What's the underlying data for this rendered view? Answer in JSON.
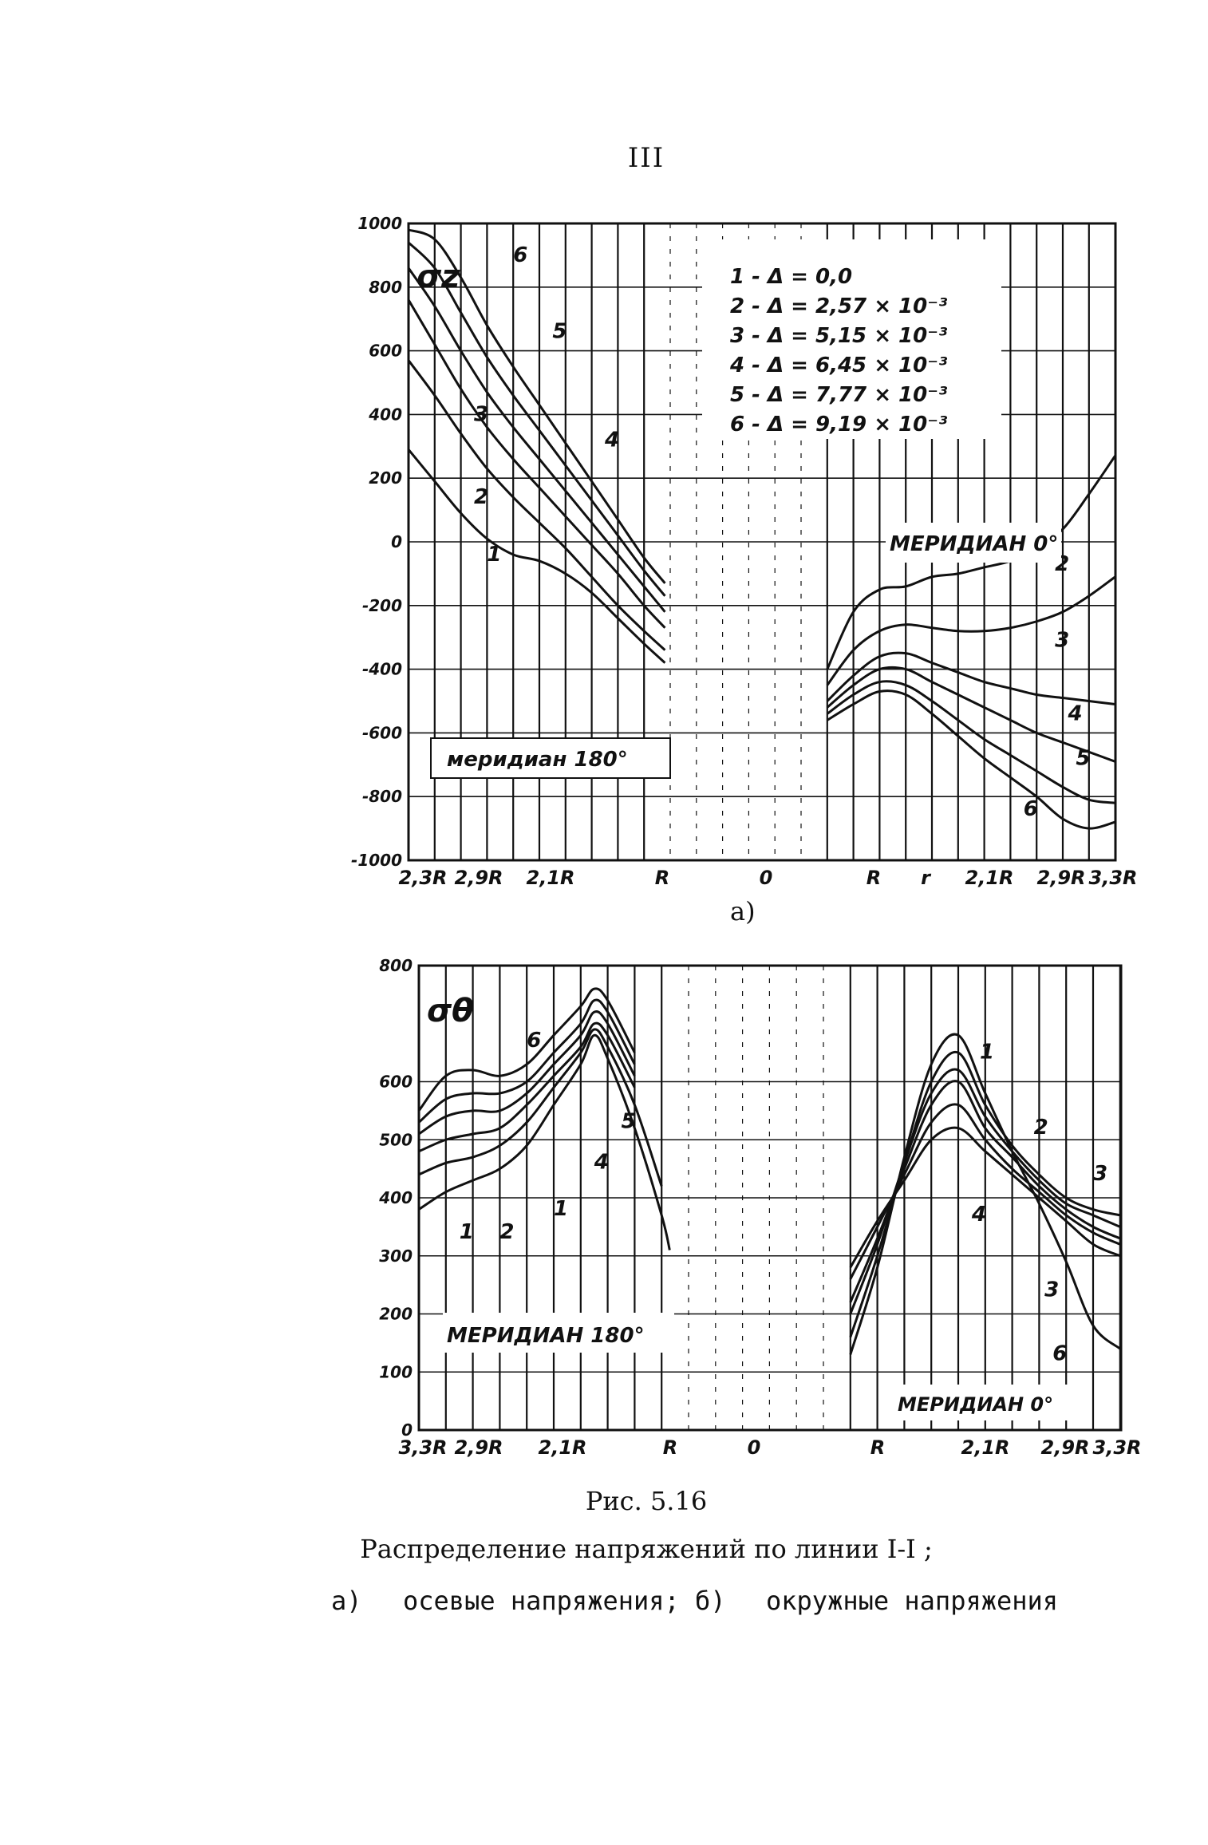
{
  "page_number": "III",
  "figure": {
    "number_caption": "Рис. 5.16",
    "title": "Распределение напряжений по линии I-I ;",
    "part_a_prefix": "а)",
    "part_a_text": "осевые напряжения; б)",
    "part_b_text": "окружные напряжения"
  },
  "colors": {
    "ink": "#111111",
    "paper": "#ffffff"
  },
  "chart_data": [
    {
      "id": "a",
      "type": "line",
      "panel_label": "а)",
      "ylabel": "σz",
      "ylim": [
        -1000,
        1000
      ],
      "grid": true,
      "y_ticks": [
        {
          "value": 1000,
          "label": "1000"
        },
        {
          "value": 800,
          "label": "800"
        },
        {
          "value": 600,
          "label": "600"
        },
        {
          "value": 400,
          "label": "400"
        },
        {
          "value": 200,
          "label": "200"
        },
        {
          "value": 0,
          "label": "0"
        },
        {
          "value": -200,
          "label": "-200"
        },
        {
          "value": -400,
          "label": "-400"
        },
        {
          "value": -600,
          "label": "-600"
        },
        {
          "value": -800,
          "label": "-800"
        },
        {
          "value": -1000,
          "label": "-1000"
        }
      ],
      "x_ticks": [
        "2,3R",
        "2,9R",
        "2,1R",
        "R",
        "0",
        "R",
        "r",
        "2,1R",
        "2,9R",
        "3,3R"
      ],
      "legend": [
        {
          "id": "1",
          "text": "1 - Δ  =  0,0"
        },
        {
          "id": "2",
          "text": "2 - Δ  =  2,57 × 10⁻³"
        },
        {
          "id": "3",
          "text": "3 - Δ  =  5,15 × 10⁻³"
        },
        {
          "id": "4",
          "text": "4 - Δ  =  6,45 × 10⁻³"
        },
        {
          "id": "5",
          "text": "5 - Δ  =  7,77 × 10⁻³"
        },
        {
          "id": "6",
          "text": "6 - Δ  =  9,19 × 10⁻³"
        }
      ],
      "meridian_left": "меридиан 180°",
      "meridian_right": "МЕРИДИАН 0°",
      "x_units": "position index, 0 = leftmost gridline (2,3R); 1 unit ≈ one grid spacing; gap between R and R is empty",
      "series": [
        {
          "name": "1",
          "side": "left",
          "x": [
            0,
            1,
            2,
            3,
            4,
            5,
            6,
            7,
            8,
            9,
            9.8
          ],
          "y": [
            290,
            190,
            90,
            10,
            -40,
            -60,
            -100,
            -160,
            -240,
            -320,
            -380
          ]
        },
        {
          "name": "2",
          "side": "left",
          "x": [
            0,
            1,
            2,
            3,
            4,
            5,
            6,
            7,
            8,
            9,
            9.8
          ],
          "y": [
            570,
            460,
            340,
            230,
            140,
            60,
            -20,
            -110,
            -200,
            -280,
            -340
          ]
        },
        {
          "name": "3",
          "side": "left",
          "x": [
            0,
            1,
            2,
            3,
            4,
            5,
            6,
            7,
            8,
            9,
            9.8
          ],
          "y": [
            760,
            620,
            480,
            360,
            260,
            170,
            80,
            -10,
            -100,
            -200,
            -270
          ]
        },
        {
          "name": "4",
          "side": "left",
          "x": [
            0,
            1,
            2,
            3,
            4,
            5,
            6,
            7,
            8,
            9,
            9.8
          ],
          "y": [
            860,
            740,
            600,
            470,
            360,
            260,
            160,
            60,
            -40,
            -140,
            -220
          ]
        },
        {
          "name": "5",
          "side": "left",
          "x": [
            0,
            1,
            2,
            3,
            4,
            5,
            6,
            7,
            8,
            9,
            9.8
          ],
          "y": [
            940,
            860,
            720,
            580,
            460,
            350,
            240,
            130,
            20,
            -90,
            -170
          ]
        },
        {
          "name": "6",
          "side": "left",
          "x": [
            0,
            1,
            2,
            3,
            4,
            5,
            6,
            7,
            8,
            9,
            9.8
          ],
          "y": [
            980,
            950,
            830,
            680,
            550,
            430,
            310,
            190,
            70,
            -50,
            -130
          ]
        },
        {
          "name": "1",
          "side": "right",
          "x": [
            16,
            17,
            18,
            19,
            20,
            21,
            22,
            23,
            24,
            25,
            26,
            27
          ],
          "y": [
            -400,
            -220,
            -150,
            -140,
            -110,
            -100,
            -80,
            -60,
            -20,
            40,
            150,
            270
          ]
        },
        {
          "name": "2",
          "side": "right",
          "x": [
            16,
            17,
            18,
            19,
            20,
            21,
            22,
            23,
            24,
            25,
            26,
            27
          ],
          "y": [
            -450,
            -340,
            -280,
            -260,
            -270,
            -280,
            -280,
            -270,
            -250,
            -220,
            -170,
            -110
          ]
        },
        {
          "name": "3",
          "side": "right",
          "x": [
            16,
            17,
            18,
            19,
            20,
            21,
            22,
            23,
            24,
            25,
            26,
            27
          ],
          "y": [
            -500,
            -420,
            -360,
            -350,
            -380,
            -410,
            -440,
            -460,
            -480,
            -490,
            -500,
            -510
          ]
        },
        {
          "name": "4",
          "side": "right",
          "x": [
            16,
            17,
            18,
            19,
            20,
            21,
            22,
            23,
            24,
            25,
            26,
            27
          ],
          "y": [
            -520,
            -450,
            -400,
            -400,
            -440,
            -480,
            -520,
            -560,
            -600,
            -630,
            -660,
            -690
          ]
        },
        {
          "name": "5",
          "side": "right",
          "x": [
            16,
            17,
            18,
            19,
            20,
            21,
            22,
            23,
            24,
            25,
            26,
            27
          ],
          "y": [
            -540,
            -480,
            -440,
            -450,
            -500,
            -560,
            -620,
            -670,
            -720,
            -770,
            -810,
            -820
          ]
        },
        {
          "name": "6",
          "side": "right",
          "x": [
            16,
            17,
            18,
            19,
            20,
            21,
            22,
            23,
            24,
            25,
            26,
            27
          ],
          "y": [
            -560,
            -510,
            -470,
            -480,
            -540,
            -610,
            -680,
            -740,
            -800,
            -870,
            -900,
            -880
          ]
        }
      ],
      "curve_labels": [
        {
          "text": "6",
          "x": 4,
          "y": 880
        },
        {
          "text": "5",
          "x": 5.5,
          "y": 640
        },
        {
          "text": "4",
          "x": 7.5,
          "y": 300
        },
        {
          "text": "3",
          "x": 2.5,
          "y": 380
        },
        {
          "text": "2",
          "x": 2.5,
          "y": 120
        },
        {
          "text": "1",
          "x": 3,
          "y": -60
        },
        {
          "text": "2",
          "x": 24.7,
          "y": -90
        },
        {
          "text": "3",
          "x": 24.7,
          "y": -330
        },
        {
          "text": "4",
          "x": 25.2,
          "y": -560
        },
        {
          "text": "5",
          "x": 25.5,
          "y": -700
        },
        {
          "text": "6",
          "x": 23.5,
          "y": -860
        }
      ]
    },
    {
      "id": "b",
      "type": "line",
      "panel_label": "б)",
      "ylabel": "σθ",
      "ylim": [
        0,
        800
      ],
      "grid": true,
      "y_ticks": [
        {
          "value": 800,
          "label": "800"
        },
        {
          "value": 600,
          "label": "600"
        },
        {
          "value": 500,
          "label": "500"
        },
        {
          "value": 400,
          "label": "400"
        },
        {
          "value": 300,
          "label": "300"
        },
        {
          "value": 200,
          "label": "200"
        },
        {
          "value": 100,
          "label": "100"
        },
        {
          "value": 0,
          "label": "0"
        }
      ],
      "x_ticks": [
        "3,3R",
        "2,9R",
        "2,1R",
        "R",
        "0",
        "R",
        "2,1R",
        "2,9R",
        "3,3R"
      ],
      "meridian_left": "МЕРИДИАН 180°",
      "meridian_right": "МЕРИДИАН 0°",
      "x_units": "position index, 0 = leftmost gridline (3,3R); 1 unit ≈ one grid spacing; gap between R and R is empty",
      "series": [
        {
          "name": "1",
          "side": "left",
          "x": [
            0,
            1,
            2,
            3,
            4,
            5,
            6,
            6.5,
            7,
            8,
            9,
            9.3
          ],
          "y": [
            380,
            410,
            430,
            450,
            490,
            560,
            630,
            680,
            640,
            520,
            370,
            310
          ]
        },
        {
          "name": "2",
          "side": "left",
          "x": [
            0,
            1,
            2,
            3,
            4,
            5,
            6,
            6.5,
            7,
            8,
            9
          ],
          "y": [
            440,
            460,
            470,
            490,
            530,
            590,
            650,
            690,
            660,
            560,
            420
          ]
        },
        {
          "name": "3",
          "side": "left",
          "x": [
            0,
            1,
            2,
            3,
            4,
            5,
            6,
            6.5,
            7,
            8
          ],
          "y": [
            480,
            500,
            510,
            520,
            560,
            610,
            660,
            700,
            680,
            590
          ]
        },
        {
          "name": "4",
          "side": "left",
          "x": [
            0,
            1,
            2,
            3,
            4,
            5,
            6,
            6.5,
            7,
            8
          ],
          "y": [
            510,
            540,
            550,
            550,
            580,
            630,
            680,
            720,
            700,
            610
          ]
        },
        {
          "name": "5",
          "side": "left",
          "x": [
            0,
            1,
            2,
            3,
            4,
            5,
            6,
            6.5,
            7,
            8
          ],
          "y": [
            530,
            570,
            580,
            580,
            600,
            650,
            700,
            740,
            720,
            630
          ]
        },
        {
          "name": "6",
          "side": "left",
          "x": [
            0,
            1,
            2,
            3,
            4,
            5,
            6,
            6.5,
            7,
            8
          ],
          "y": [
            550,
            610,
            620,
            610,
            630,
            680,
            730,
            760,
            740,
            650
          ]
        },
        {
          "name": "1",
          "side": "right",
          "x": [
            16,
            17,
            18,
            19,
            20,
            21,
            22,
            23,
            24,
            25,
            26
          ],
          "y": [
            280,
            360,
            430,
            500,
            520,
            480,
            440,
            400,
            360,
            320,
            300
          ]
        },
        {
          "name": "2",
          "side": "right",
          "x": [
            16,
            17,
            18,
            19,
            20,
            21,
            22,
            23,
            24,
            25,
            26
          ],
          "y": [
            260,
            350,
            440,
            530,
            560,
            500,
            450,
            410,
            370,
            340,
            320
          ]
        },
        {
          "name": "3",
          "side": "right",
          "x": [
            16,
            17,
            18,
            19,
            20,
            21,
            22,
            23,
            24,
            25,
            26
          ],
          "y": [
            220,
            330,
            450,
            560,
            600,
            520,
            470,
            420,
            380,
            350,
            330
          ]
        },
        {
          "name": "4",
          "side": "right",
          "x": [
            16,
            17,
            18,
            19,
            20,
            21,
            22,
            23,
            24,
            25,
            26
          ],
          "y": [
            200,
            320,
            460,
            580,
            620,
            540,
            480,
            430,
            390,
            370,
            350
          ]
        },
        {
          "name": "5",
          "side": "right",
          "x": [
            16,
            17,
            18,
            19,
            20,
            21,
            22,
            23,
            24,
            25,
            26
          ],
          "y": [
            160,
            300,
            460,
            600,
            650,
            560,
            490,
            440,
            400,
            380,
            370
          ]
        },
        {
          "name": "6",
          "side": "right",
          "x": [
            16,
            17,
            18,
            19,
            20,
            21,
            22,
            23,
            24,
            25,
            26
          ],
          "y": [
            130,
            280,
            470,
            630,
            680,
            580,
            480,
            390,
            290,
            180,
            140
          ]
        }
      ],
      "curve_labels": [
        {
          "text": "6",
          "x": 4,
          "y": 660
        },
        {
          "text": "5",
          "x": 7.5,
          "y": 520
        },
        {
          "text": "4",
          "x": 6.5,
          "y": 450
        },
        {
          "text": "1",
          "x": 5,
          "y": 370
        },
        {
          "text": "2",
          "x": 3,
          "y": 330
        },
        {
          "text": "1",
          "x": 1.5,
          "y": 330
        },
        {
          "text": "1",
          "x": 20.8,
          "y": 640
        },
        {
          "text": "2",
          "x": 22.8,
          "y": 510
        },
        {
          "text": "3",
          "x": 25,
          "y": 430
        },
        {
          "text": "4",
          "x": 20.5,
          "y": 360
        },
        {
          "text": "3",
          "x": 23.2,
          "y": 230
        },
        {
          "text": "6",
          "x": 23.5,
          "y": 120
        }
      ]
    }
  ]
}
